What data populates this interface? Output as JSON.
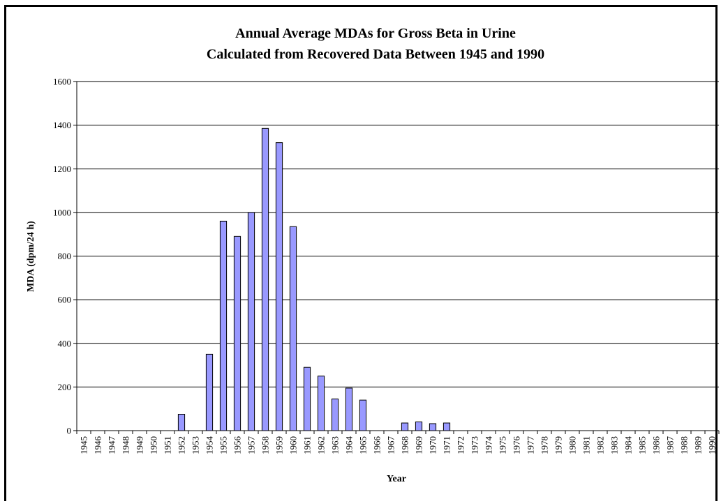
{
  "chart_data": {
    "type": "bar",
    "title": "Annual Average MDAs for Gross Beta in Urine",
    "subtitle": "Calculated from Recovered Data Between 1945 and 1990",
    "xlabel": "Year",
    "ylabel": "MDA (dpm/24 h)",
    "ylim": [
      0,
      1600
    ],
    "yticks": [
      0,
      200,
      400,
      600,
      800,
      1000,
      1200,
      1400,
      1600
    ],
    "grid": true,
    "legend": "none",
    "bar_color": "#9999ff",
    "categories": [
      "1945",
      "1946",
      "1947",
      "1948",
      "1949",
      "1950",
      "1951",
      "1952",
      "1953",
      "1954",
      "1955",
      "1956",
      "1957",
      "1958",
      "1959",
      "1960",
      "1961",
      "1962",
      "1963",
      "1964",
      "1965",
      "1966",
      "1967",
      "1968",
      "1969",
      "1970",
      "1971",
      "1972",
      "1973",
      "1974",
      "1975",
      "1976",
      "1977",
      "1978",
      "1979",
      "1980",
      "1981",
      "1982",
      "1983",
      "1984",
      "1985",
      "1986",
      "1987",
      "1988",
      "1989",
      "1990"
    ],
    "values": [
      0,
      0,
      0,
      0,
      0,
      0,
      0,
      75,
      0,
      350,
      960,
      890,
      1000,
      1385,
      1320,
      935,
      290,
      250,
      145,
      195,
      140,
      0,
      0,
      35,
      40,
      32,
      35,
      0,
      0,
      0,
      0,
      0,
      0,
      0,
      0,
      0,
      0,
      0,
      0,
      0,
      0,
      0,
      0,
      0,
      0,
      0
    ]
  }
}
